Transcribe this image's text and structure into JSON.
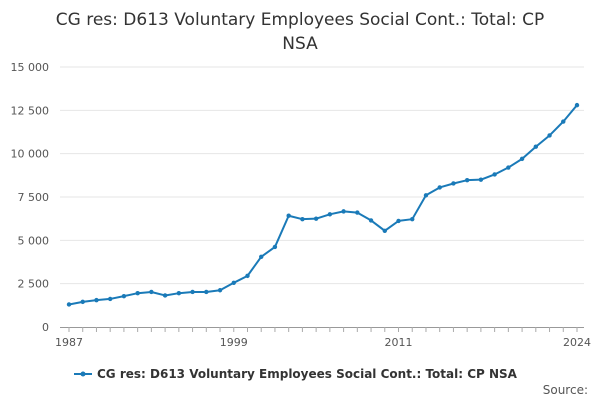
{
  "chart_data": {
    "type": "line",
    "title": "CG res: D613 Voluntary Employees Social Cont.: Total: CP NSA",
    "xlabel": "",
    "ylabel": "",
    "source_label": "Source:",
    "x": [
      1987,
      1988,
      1989,
      1990,
      1991,
      1992,
      1993,
      1994,
      1995,
      1996,
      1997,
      1998,
      1999,
      2000,
      2001,
      2002,
      2003,
      2004,
      2005,
      2006,
      2007,
      2008,
      2009,
      2010,
      2011,
      2012,
      2013,
      2014,
      2015,
      2016,
      2017,
      2018,
      2019,
      2020,
      2021,
      2022,
      2023,
      2024
    ],
    "x_ticks": [
      1987,
      1999,
      2011,
      2024
    ],
    "x_tick_labels": [
      "1987",
      "1999",
      "2011",
      "2024"
    ],
    "ylim": [
      0,
      15000
    ],
    "y_ticks": [
      0,
      2500,
      5000,
      7500,
      10000,
      12500,
      15000
    ],
    "y_tick_labels": [
      "0",
      "2 500",
      "5 000",
      "7 500",
      "10 000",
      "12 500",
      "15 000"
    ],
    "grid": true,
    "legend_position": "bottom",
    "series": [
      {
        "name": "CG res: D613 Voluntary Employees Social Cont.: Total: CP NSA",
        "color": "#1a7ab8",
        "values": [
          1300,
          1450,
          1550,
          1620,
          1780,
          1950,
          2020,
          1820,
          1950,
          2020,
          2020,
          2120,
          2550,
          2950,
          4050,
          4620,
          6420,
          6220,
          6250,
          6500,
          6670,
          6600,
          6150,
          5550,
          6120,
          6220,
          7600,
          8050,
          8280,
          8470,
          8500,
          8800,
          9200,
          9700,
          10400,
          11050,
          11850,
          12800
        ]
      }
    ]
  }
}
